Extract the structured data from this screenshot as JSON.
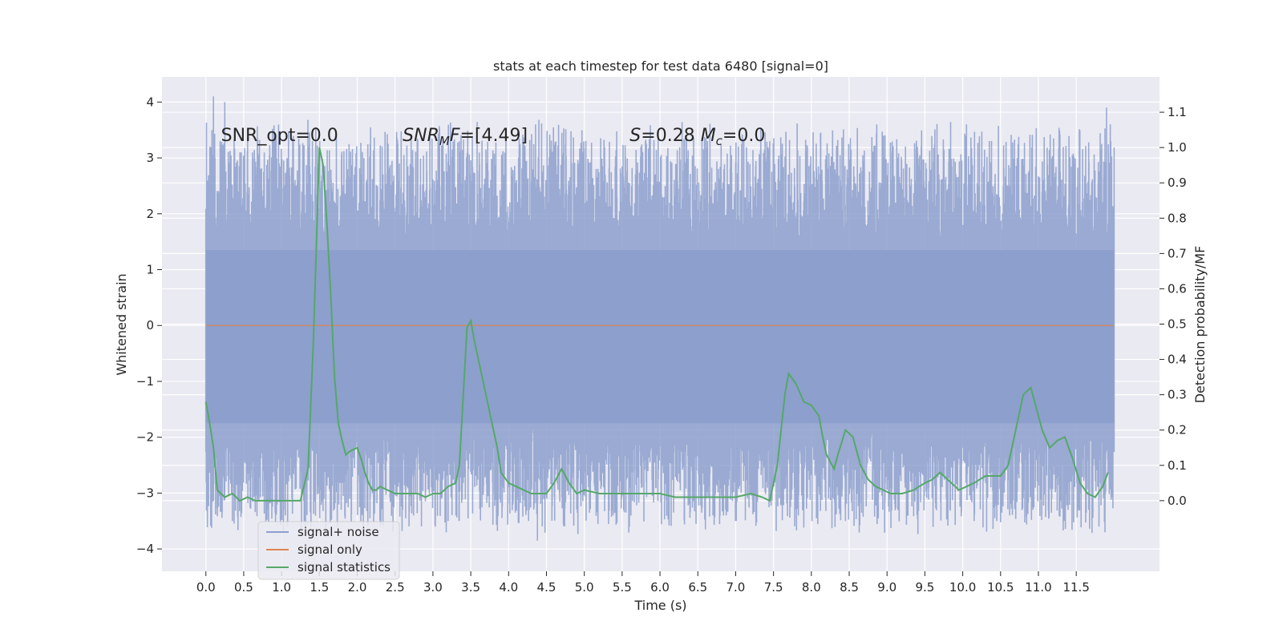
{
  "chart_data": {
    "type": "line",
    "title": "stats at each timestep for test data 6480 [signal=0]",
    "xlabel": "Time (s)",
    "ylabel_left": "Whitened strain",
    "ylabel_right": "Detection probability/MF",
    "xlim": [
      -0.58,
      12.6
    ],
    "ylim_left": [
      -4.4,
      4.45
    ],
    "ylim_right": [
      -0.2,
      1.2
    ],
    "x_ticks": [
      0.0,
      0.5,
      1.0,
      1.5,
      2.0,
      2.5,
      3.0,
      3.5,
      4.0,
      4.5,
      5.0,
      5.5,
      6.0,
      6.5,
      7.0,
      7.5,
      8.0,
      8.5,
      9.0,
      9.5,
      10.0,
      10.5,
      11.0,
      11.5
    ],
    "x_tick_labels": [
      "0.0",
      "0.5",
      "1.0",
      "1.5",
      "2.0",
      "2.5",
      "3.0",
      "3.5",
      "4.0",
      "4.5",
      "5.0",
      "5.5",
      "6.0",
      "6.5",
      "7.0",
      "7.5",
      "8.0",
      "8.5",
      "9.0",
      "9.5",
      "10.0",
      "10.5",
      "11.0",
      "11.5"
    ],
    "y_left_ticks": [
      -4,
      -3,
      -2,
      -1,
      0,
      1,
      2,
      3,
      4
    ],
    "y_left_tick_labels": [
      "−4",
      "−3",
      "−2",
      "−1",
      "0",
      "1",
      "2",
      "3",
      "4"
    ],
    "y_right_ticks": [
      0.0,
      0.1,
      0.2,
      0.3,
      0.4,
      0.5,
      0.6,
      0.7,
      0.8,
      0.9,
      1.0,
      1.1
    ],
    "y_right_tick_labels": [
      "0.0",
      "0.1",
      "0.2",
      "0.3",
      "0.4",
      "0.5",
      "0.6",
      "0.7",
      "0.8",
      "0.9",
      "1.0",
      "1.1"
    ],
    "grid": true,
    "legend_position": "lower-left",
    "annotations": [
      {
        "text": "SNR_opt=0.0",
        "x": 0.2,
        "y": 3.3
      },
      {
        "text": "SNR_MF=[4.49]",
        "x": 2.6,
        "y": 3.3
      },
      {
        "text": "S=0.28   M_c=0.0",
        "x": 5.6,
        "y": 3.3
      }
    ],
    "series": [
      {
        "name": "signal+ noise",
        "axis": "left",
        "color": "#8c9fcc",
        "kind": "noise-band",
        "x_range": [
          0.0,
          12.0
        ],
        "core_band": [
          -1.75,
          1.35
        ],
        "peaks": [
          {
            "x": 0.1,
            "y": 4.1
          },
          {
            "x": 0.25,
            "y": 4.0
          },
          {
            "x": 0.12,
            "y": 3.0
          },
          {
            "x": 0.35,
            "y": -3.5
          },
          {
            "x": 0.45,
            "y": 3.1
          },
          {
            "x": 1.05,
            "y": -3.4
          },
          {
            "x": 1.3,
            "y": -3.5
          },
          {
            "x": 1.45,
            "y": 3.2
          },
          {
            "x": 3.2,
            "y": -3.5
          },
          {
            "x": 3.35,
            "y": 3.3
          },
          {
            "x": 4.38,
            "y": -3.85
          },
          {
            "x": 4.15,
            "y": 3.25
          },
          {
            "x": 5.55,
            "y": -3.35
          },
          {
            "x": 6.35,
            "y": 3.35
          },
          {
            "x": 6.55,
            "y": -3.35
          },
          {
            "x": 6.7,
            "y": -3.4
          },
          {
            "x": 7.45,
            "y": 3.3
          },
          {
            "x": 8.45,
            "y": -3.5
          },
          {
            "x": 9.4,
            "y": 3.2
          },
          {
            "x": 10.05,
            "y": 3.6
          },
          {
            "x": 10.15,
            "y": -3.5
          },
          {
            "x": 10.45,
            "y": -3.5
          },
          {
            "x": 11.2,
            "y": 3.35
          },
          {
            "x": 11.8,
            "y": -3.6
          },
          {
            "x": 11.9,
            "y": 3.9
          },
          {
            "x": 11.95,
            "y": 3.6
          },
          {
            "x": 11.88,
            "y": -3.7
          }
        ]
      },
      {
        "name": "signal only",
        "axis": "left",
        "color": "#dd8452",
        "x": [
          0.0,
          12.0
        ],
        "values": [
          0.0,
          0.0
        ]
      },
      {
        "name": "signal statistics",
        "axis": "right",
        "color": "#55a868",
        "x": [
          0.0,
          0.05,
          0.1,
          0.15,
          0.25,
          0.35,
          0.45,
          0.55,
          0.65,
          0.75,
          0.85,
          0.95,
          1.05,
          1.15,
          1.25,
          1.35,
          1.42,
          1.5,
          1.55,
          1.6,
          1.65,
          1.7,
          1.75,
          1.8,
          1.85,
          1.9,
          2.0,
          2.05,
          2.1,
          2.15,
          2.2,
          2.25,
          2.3,
          2.4,
          2.5,
          2.6,
          2.7,
          2.8,
          2.9,
          3.0,
          3.1,
          3.2,
          3.3,
          3.35,
          3.45,
          3.5,
          3.55,
          3.65,
          3.75,
          3.85,
          3.9,
          4.0,
          4.1,
          4.2,
          4.3,
          4.4,
          4.5,
          4.6,
          4.7,
          4.8,
          4.9,
          5.0,
          5.2,
          5.4,
          5.6,
          5.8,
          6.0,
          6.2,
          6.4,
          6.6,
          6.8,
          7.0,
          7.2,
          7.35,
          7.45,
          7.55,
          7.65,
          7.7,
          7.8,
          7.9,
          8.0,
          8.1,
          8.15,
          8.2,
          8.3,
          8.35,
          8.45,
          8.55,
          8.65,
          8.75,
          8.85,
          8.95,
          9.05,
          9.2,
          9.35,
          9.5,
          9.6,
          9.7,
          9.8,
          9.95,
          10.05,
          10.15,
          10.3,
          10.4,
          10.5,
          10.6,
          10.7,
          10.8,
          10.9,
          10.95,
          11.05,
          11.15,
          11.25,
          11.35,
          11.45,
          11.55,
          11.65,
          11.75,
          11.85,
          11.92
        ],
        "values": [
          0.28,
          0.22,
          0.15,
          0.03,
          0.01,
          0.02,
          0.0,
          0.01,
          0.0,
          0.0,
          0.0,
          0.0,
          0.0,
          0.0,
          0.0,
          0.09,
          0.45,
          1.0,
          0.95,
          0.78,
          0.58,
          0.35,
          0.22,
          0.17,
          0.13,
          0.14,
          0.15,
          0.12,
          0.08,
          0.05,
          0.03,
          0.03,
          0.04,
          0.03,
          0.02,
          0.02,
          0.02,
          0.02,
          0.01,
          0.02,
          0.02,
          0.04,
          0.05,
          0.1,
          0.49,
          0.51,
          0.45,
          0.35,
          0.25,
          0.15,
          0.08,
          0.05,
          0.04,
          0.03,
          0.02,
          0.02,
          0.02,
          0.05,
          0.09,
          0.05,
          0.02,
          0.03,
          0.02,
          0.02,
          0.02,
          0.02,
          0.02,
          0.01,
          0.01,
          0.01,
          0.01,
          0.01,
          0.02,
          0.01,
          0.0,
          0.1,
          0.3,
          0.36,
          0.33,
          0.28,
          0.27,
          0.24,
          0.18,
          0.13,
          0.09,
          0.13,
          0.2,
          0.18,
          0.1,
          0.06,
          0.04,
          0.03,
          0.02,
          0.02,
          0.03,
          0.05,
          0.06,
          0.08,
          0.06,
          0.03,
          0.04,
          0.05,
          0.07,
          0.07,
          0.07,
          0.1,
          0.2,
          0.3,
          0.32,
          0.28,
          0.2,
          0.15,
          0.17,
          0.18,
          0.12,
          0.05,
          0.02,
          0.01,
          0.04,
          0.08
        ]
      }
    ]
  },
  "legend": {
    "items": [
      {
        "label": "signal+ noise",
        "color": "#8c9fcc"
      },
      {
        "label": "signal only",
        "color": "#dd8452"
      },
      {
        "label": "signal statistics",
        "color": "#55a868"
      }
    ]
  },
  "colors": {
    "plot_background": "#eaeaf2",
    "grid": "#ffffff",
    "text": "#262626"
  }
}
